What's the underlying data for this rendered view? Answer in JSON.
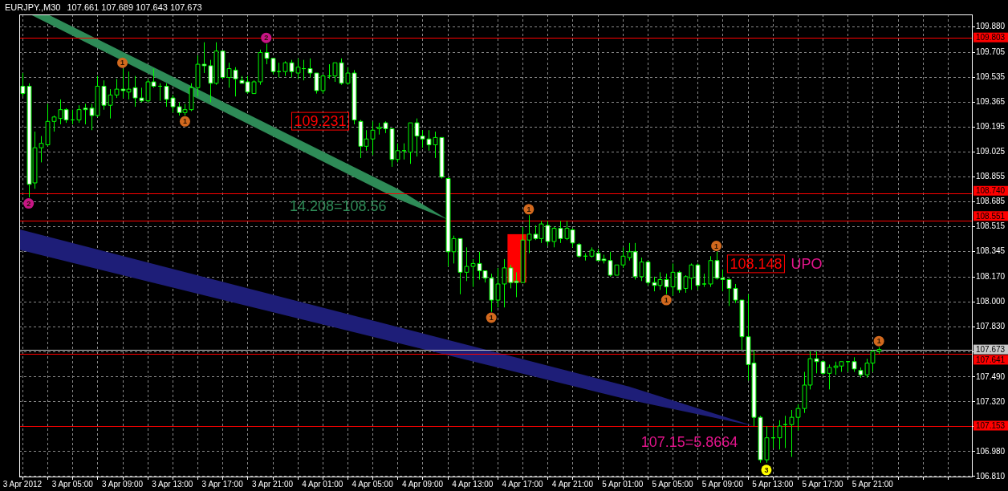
{
  "chart_data": {
    "type": "candlestick",
    "title": "EURJPY.,M30",
    "subtitle": "107.661 107.689 107.643 107.673",
    "color": "#00ff00",
    "x": [
      "2012-04-03T01:00",
      "2012-04-03T01:30",
      "2012-04-03T02:00",
      "2012-04-03T02:30",
      "2012-04-03T03:00",
      "2012-04-03T03:30",
      "2012-04-03T04:00",
      "2012-04-03T04:30",
      "2012-04-03T05:00",
      "2012-04-03T05:30",
      "2012-04-03T06:00",
      "2012-04-03T06:30",
      "2012-04-03T07:00",
      "2012-04-03T07:30",
      "2012-04-03T08:00",
      "2012-04-03T08:30",
      "2012-04-03T09:00",
      "2012-04-03T09:30",
      "2012-04-03T10:00",
      "2012-04-03T10:30",
      "2012-04-03T11:00",
      "2012-04-03T11:30",
      "2012-04-03T12:00",
      "2012-04-03T12:30",
      "2012-04-03T13:00",
      "2012-04-03T13:30",
      "2012-04-03T14:00",
      "2012-04-03T14:30",
      "2012-04-03T15:00",
      "2012-04-03T15:30",
      "2012-04-03T16:00",
      "2012-04-03T16:30",
      "2012-04-03T17:00",
      "2012-04-03T17:30",
      "2012-04-03T18:00",
      "2012-04-03T18:30",
      "2012-04-03T19:00",
      "2012-04-03T19:30",
      "2012-04-03T20:00",
      "2012-04-03T20:30",
      "2012-04-03T21:00",
      "2012-04-03T21:30",
      "2012-04-03T22:00",
      "2012-04-03T22:30",
      "2012-04-03T23:00",
      "2012-04-03T23:30",
      "2012-04-04T00:00",
      "2012-04-04T00:30",
      "2012-04-04T01:00",
      "2012-04-04T01:30",
      "2012-04-04T02:00",
      "2012-04-04T02:30",
      "2012-04-04T03:00",
      "2012-04-04T03:30",
      "2012-04-04T04:00",
      "2012-04-04T04:30",
      "2012-04-04T05:00",
      "2012-04-04T05:30",
      "2012-04-04T06:00",
      "2012-04-04T06:30",
      "2012-04-04T07:00",
      "2012-04-04T07:30",
      "2012-04-04T08:00",
      "2012-04-04T08:30",
      "2012-04-04T09:00",
      "2012-04-04T09:30",
      "2012-04-04T10:00",
      "2012-04-04T10:30",
      "2012-04-04T11:00",
      "2012-04-04T11:30",
      "2012-04-04T12:00",
      "2012-04-04T12:30",
      "2012-04-04T13:00",
      "2012-04-04T13:30",
      "2012-04-04T14:00",
      "2012-04-04T14:30",
      "2012-04-04T15:00",
      "2012-04-04T15:30",
      "2012-04-04T16:00",
      "2012-04-04T16:30",
      "2012-04-04T17:00",
      "2012-04-04T17:30",
      "2012-04-04T18:00",
      "2012-04-04T18:30",
      "2012-04-04T19:00",
      "2012-04-04T19:30",
      "2012-04-04T20:00",
      "2012-04-04T20:30",
      "2012-04-04T21:00",
      "2012-04-04T21:30",
      "2012-04-04T22:00",
      "2012-04-04T22:30",
      "2012-04-04T23:00",
      "2012-04-04T23:30",
      "2012-04-05T00:00",
      "2012-04-05T00:30",
      "2012-04-05T01:00",
      "2012-04-05T01:30",
      "2012-04-05T02:00",
      "2012-04-05T02:30",
      "2012-04-05T03:00",
      "2012-04-05T03:30",
      "2012-04-05T04:00",
      "2012-04-05T04:30",
      "2012-04-05T05:00",
      "2012-04-05T05:30",
      "2012-04-05T06:00",
      "2012-04-05T06:30",
      "2012-04-05T07:00",
      "2012-04-05T07:30",
      "2012-04-05T08:00",
      "2012-04-05T08:30",
      "2012-04-05T09:00",
      "2012-04-05T09:30",
      "2012-04-05T10:00",
      "2012-04-05T10:30",
      "2012-04-05T11:00",
      "2012-04-05T11:30",
      "2012-04-05T12:00",
      "2012-04-05T12:30",
      "2012-04-05T13:00",
      "2012-04-05T13:30",
      "2012-04-05T14:00",
      "2012-04-05T14:30",
      "2012-04-05T15:00",
      "2012-04-05T15:30",
      "2012-04-05T16:00",
      "2012-04-05T16:30",
      "2012-04-05T17:00",
      "2012-04-05T17:30",
      "2012-04-05T18:00",
      "2012-04-05T18:30",
      "2012-04-05T19:00",
      "2012-04-05T19:30",
      "2012-04-05T20:00",
      "2012-04-05T20:30",
      "2012-04-05T21:00",
      "2012-04-05T21:30"
    ],
    "ohlc": [
      [
        109.47,
        109.56,
        109.4,
        109.42
      ],
      [
        109.47,
        109.49,
        108.71,
        108.8
      ],
      [
        108.81,
        109.16,
        108.77,
        109.05
      ],
      [
        109.05,
        109.13,
        108.95,
        109.08
      ],
      [
        109.07,
        109.35,
        109.06,
        109.23
      ],
      [
        109.23,
        109.27,
        109.16,
        109.26
      ],
      [
        109.25,
        109.38,
        109.21,
        109.31
      ],
      [
        109.31,
        109.32,
        109.22,
        109.24
      ],
      [
        109.24,
        109.31,
        109.21,
        109.24
      ],
      [
        109.24,
        109.34,
        109.22,
        109.31
      ],
      [
        109.32,
        109.35,
        109.21,
        109.31
      ],
      [
        109.32,
        109.35,
        109.17,
        109.27
      ],
      [
        109.27,
        109.54,
        109.26,
        109.47
      ],
      [
        109.47,
        109.51,
        109.31,
        109.34
      ],
      [
        109.34,
        109.45,
        109.25,
        109.41
      ],
      [
        109.41,
        109.52,
        109.39,
        109.45
      ],
      [
        109.45,
        109.59,
        109.39,
        109.44
      ],
      [
        109.43,
        109.57,
        109.38,
        109.45
      ],
      [
        109.46,
        109.54,
        109.33,
        109.39
      ],
      [
        109.39,
        109.46,
        109.36,
        109.37
      ],
      [
        109.37,
        109.52,
        109.36,
        109.5
      ],
      [
        109.5,
        109.59,
        109.46,
        109.47
      ],
      [
        109.47,
        109.49,
        109.37,
        109.47
      ],
      [
        109.47,
        109.49,
        109.33,
        109.38
      ],
      [
        109.39,
        109.41,
        109.29,
        109.33
      ],
      [
        109.33,
        109.36,
        109.27,
        109.29
      ],
      [
        109.29,
        109.35,
        109.27,
        109.31
      ],
      [
        109.31,
        109.49,
        109.3,
        109.46
      ],
      [
        109.46,
        109.68,
        109.4,
        109.62
      ],
      [
        109.62,
        109.77,
        109.56,
        109.61
      ],
      [
        109.61,
        109.65,
        109.36,
        109.49
      ],
      [
        109.49,
        109.77,
        109.48,
        109.71
      ],
      [
        109.71,
        109.71,
        109.52,
        109.53
      ],
      [
        109.53,
        109.63,
        109.46,
        109.59
      ],
      [
        109.58,
        109.6,
        109.4,
        109.52
      ],
      [
        109.51,
        109.54,
        109.49,
        109.49
      ],
      [
        109.5,
        109.54,
        109.42,
        109.43
      ],
      [
        109.42,
        109.51,
        109.42,
        109.5
      ],
      [
        109.5,
        109.72,
        109.48,
        109.7
      ],
      [
        109.7,
        109.76,
        109.62,
        109.66
      ],
      [
        109.66,
        109.66,
        109.55,
        109.57
      ],
      [
        109.57,
        109.63,
        109.53,
        109.57
      ],
      [
        109.57,
        109.64,
        109.54,
        109.63
      ],
      [
        109.63,
        109.65,
        109.53,
        109.57
      ],
      [
        109.56,
        109.66,
        109.52,
        109.6
      ],
      [
        109.59,
        109.65,
        109.51,
        109.59
      ],
      [
        109.59,
        109.66,
        109.53,
        109.56
      ],
      [
        109.56,
        109.56,
        109.42,
        109.44
      ],
      [
        109.44,
        109.55,
        109.42,
        109.54
      ],
      [
        109.54,
        109.62,
        109.52,
        109.54
      ],
      [
        109.54,
        109.63,
        109.5,
        109.63
      ],
      [
        109.63,
        109.66,
        109.48,
        109.49
      ],
      [
        109.49,
        109.6,
        109.48,
        109.56
      ],
      [
        109.56,
        109.58,
        109.21,
        109.24
      ],
      [
        109.23,
        109.24,
        108.98,
        109.06
      ],
      [
        109.06,
        109.17,
        109.03,
        109.11
      ],
      [
        109.11,
        109.23,
        109.0,
        109.17
      ],
      [
        109.18,
        109.22,
        109.14,
        109.19
      ],
      [
        109.22,
        109.23,
        109.15,
        109.18
      ],
      [
        109.18,
        109.18,
        108.92,
        108.97
      ],
      [
        108.97,
        109.08,
        108.95,
        109.03
      ],
      [
        109.03,
        109.08,
        108.97,
        109.03
      ],
      [
        109.02,
        109.22,
        108.94,
        109.22
      ],
      [
        109.22,
        109.25,
        108.99,
        109.13
      ],
      [
        109.13,
        109.17,
        109.05,
        109.11
      ],
      [
        109.11,
        109.17,
        109.03,
        109.07
      ],
      [
        109.07,
        109.16,
        108.98,
        109.12
      ],
      [
        109.12,
        109.12,
        108.84,
        108.85
      ],
      [
        108.84,
        108.85,
        108.24,
        108.34
      ],
      [
        108.34,
        108.45,
        108.26,
        108.43
      ],
      [
        108.43,
        108.43,
        108.05,
        108.2
      ],
      [
        108.2,
        108.37,
        108.14,
        108.24
      ],
      [
        108.24,
        108.29,
        108.1,
        108.26
      ],
      [
        108.26,
        108.34,
        108.15,
        108.21
      ],
      [
        108.21,
        108.21,
        108.13,
        108.16
      ],
      [
        108.16,
        108.19,
        107.93,
        108.01
      ],
      [
        108.01,
        108.23,
        107.96,
        108.12
      ],
      [
        108.12,
        108.29,
        107.96,
        108.23
      ],
      [
        108.23,
        108.25,
        108.09,
        108.13
      ],
      [
        108.14,
        108.2,
        108.03,
        108.13
      ],
      [
        108.13,
        108.51,
        108.13,
        108.42
      ],
      [
        108.42,
        108.59,
        108.33,
        108.46
      ],
      [
        108.46,
        108.52,
        108.42,
        108.43
      ],
      [
        108.43,
        108.55,
        108.4,
        108.53
      ],
      [
        108.52,
        108.55,
        108.38,
        108.41
      ],
      [
        108.41,
        108.51,
        108.37,
        108.5
      ],
      [
        108.5,
        108.55,
        108.4,
        108.43
      ],
      [
        108.43,
        108.55,
        108.42,
        108.5
      ],
      [
        108.49,
        108.5,
        108.37,
        108.4
      ],
      [
        108.39,
        108.4,
        108.3,
        108.31
      ],
      [
        108.31,
        108.33,
        108.28,
        108.31
      ],
      [
        108.31,
        108.37,
        108.3,
        108.35
      ],
      [
        108.33,
        108.36,
        108.28,
        108.28
      ],
      [
        108.29,
        108.32,
        108.26,
        108.28
      ],
      [
        108.28,
        108.34,
        108.17,
        108.18
      ],
      [
        108.18,
        108.25,
        108.18,
        108.25
      ],
      [
        108.25,
        108.37,
        108.23,
        108.31
      ],
      [
        108.3,
        108.4,
        108.28,
        108.34
      ],
      [
        108.34,
        108.4,
        108.15,
        108.17
      ],
      [
        108.17,
        108.3,
        108.14,
        108.27
      ],
      [
        108.27,
        108.28,
        108.11,
        108.13
      ],
      [
        108.13,
        108.17,
        108.07,
        108.11
      ],
      [
        108.11,
        108.2,
        108.08,
        108.15
      ],
      [
        108.15,
        108.19,
        108.05,
        108.1
      ],
      [
        108.1,
        108.26,
        108.04,
        108.2
      ],
      [
        108.2,
        108.21,
        108.06,
        108.08
      ],
      [
        108.09,
        108.18,
        108.06,
        108.17
      ],
      [
        108.16,
        108.26,
        108.08,
        108.25
      ],
      [
        108.25,
        108.26,
        108.08,
        108.11
      ],
      [
        108.12,
        108.19,
        108.1,
        108.12
      ],
      [
        108.12,
        108.31,
        108.1,
        108.28
      ],
      [
        108.28,
        108.34,
        108.15,
        108.16
      ],
      [
        108.16,
        108.22,
        108.07,
        108.15
      ],
      [
        108.15,
        108.16,
        107.97,
        108.09
      ],
      [
        108.09,
        108.12,
        107.99,
        108.01
      ],
      [
        108.01,
        108.01,
        107.67,
        107.76
      ],
      [
        107.76,
        108.05,
        107.46,
        107.57
      ],
      [
        107.58,
        107.67,
        107.15,
        107.21
      ],
      [
        107.21,
        107.22,
        106.9,
        106.92
      ],
      [
        106.92,
        107.15,
        106.9,
        107.07
      ],
      [
        107.07,
        107.15,
        107.0,
        107.07
      ],
      [
        107.07,
        107.19,
        106.99,
        107.15
      ],
      [
        107.16,
        107.22,
        107.0,
        107.16
      ],
      [
        107.16,
        107.26,
        106.94,
        107.21
      ],
      [
        107.21,
        107.3,
        107.12,
        107.27
      ],
      [
        107.27,
        107.52,
        107.24,
        107.43
      ],
      [
        107.43,
        107.66,
        107.4,
        107.61
      ],
      [
        107.61,
        107.66,
        107.51,
        107.59
      ],
      [
        107.59,
        107.6,
        107.5,
        107.51
      ],
      [
        107.51,
        107.57,
        107.4,
        107.55
      ],
      [
        107.55,
        107.59,
        107.5,
        107.56
      ],
      [
        107.56,
        107.59,
        107.52,
        107.59
      ],
      [
        107.59,
        107.59,
        107.52,
        107.59
      ],
      [
        107.59,
        107.62,
        107.52,
        107.54
      ],
      [
        107.53,
        107.55,
        107.48,
        107.5
      ],
      [
        107.5,
        107.61,
        107.48,
        107.58
      ],
      [
        107.58,
        107.67,
        107.52,
        107.66
      ],
      [
        107.661,
        107.689,
        107.643,
        107.673
      ]
    ],
    "series": [
      {
        "type": "scatter",
        "color": "#d2691e",
        "marker": "circle",
        "x": [
          "2012-04-03T09:00",
          "2012-04-03T14:00",
          "2012-04-04T14:30",
          "2012-04-04T17:30",
          "2012-04-05T04:30",
          "2012-04-05T08:30",
          "2012-04-05T21:30"
        ],
        "values": [
          109.63,
          109.23,
          107.89,
          108.63,
          108.01,
          108.38,
          107.73
        ]
      },
      {
        "type": "scatter",
        "color": "#c71585",
        "marker": "circle",
        "x": [
          "2012-04-03T01:30",
          "2012-04-03T20:30"
        ],
        "values": [
          108.67,
          109.8
        ]
      },
      {
        "type": "scatter",
        "color": "#ffff00",
        "marker": "circle",
        "x": [
          "2012-04-05T12:30"
        ],
        "values": [
          106.85
        ]
      }
    ],
    "xlim": [
      "2012-04-03T00:45",
      "2012-04-06T05:00"
    ],
    "ylim": [
      106.8,
      109.96
    ],
    "xticks": [
      {
        "value": "2012-04-03T01:00",
        "label": "3 Apr 2012"
      },
      {
        "value": "2012-04-03T03:00",
        "label": null
      },
      {
        "value": "2012-04-03T05:00",
        "label": "3 Apr 05:00"
      },
      {
        "value": "2012-04-03T07:00",
        "label": null
      },
      {
        "value": "2012-04-03T09:00",
        "label": "3 Apr 09:00"
      },
      {
        "value": "2012-04-03T11:00",
        "label": null
      },
      {
        "value": "2012-04-03T13:00",
        "label": "3 Apr 13:00"
      },
      {
        "value": "2012-04-03T15:00",
        "label": null
      },
      {
        "value": "2012-04-03T17:00",
        "label": "3 Apr 17:00"
      },
      {
        "value": "2012-04-03T19:00",
        "label": null
      },
      {
        "value": "2012-04-03T21:00",
        "label": "3 Apr 21:00"
      },
      {
        "value": "2012-04-03T23:00",
        "label": null
      },
      {
        "value": "2012-04-04T01:00",
        "label": "4 Apr 01:00"
      },
      {
        "value": "2012-04-04T03:00",
        "label": null
      },
      {
        "value": "2012-04-04T05:00",
        "label": "4 Apr 05:00"
      },
      {
        "value": "2012-04-04T07:00",
        "label": null
      },
      {
        "value": "2012-04-04T09:00",
        "label": "4 Apr 09:00"
      },
      {
        "value": "2012-04-04T11:00",
        "label": null
      },
      {
        "value": "2012-04-04T13:00",
        "label": "4 Apr 13:00"
      },
      {
        "value": "2012-04-04T15:00",
        "label": null
      },
      {
        "value": "2012-04-04T17:00",
        "label": "4 Apr 17:00"
      },
      {
        "value": "2012-04-04T19:00",
        "label": null
      },
      {
        "value": "2012-04-04T21:00",
        "label": "4 Apr 21:00"
      },
      {
        "value": "2012-04-04T23:00",
        "label": null
      },
      {
        "value": "2012-04-05T01:00",
        "label": "5 Apr 01:00"
      },
      {
        "value": "2012-04-05T03:00",
        "label": null
      },
      {
        "value": "2012-04-05T05:00",
        "label": "5 Apr 05:00"
      },
      {
        "value": "2012-04-05T07:00",
        "label": null
      },
      {
        "value": "2012-04-05T09:00",
        "label": "5 Apr 09:00"
      },
      {
        "value": "2012-04-05T11:00",
        "label": null
      },
      {
        "value": "2012-04-05T13:00",
        "label": "5 Apr 13:00"
      },
      {
        "value": "2012-04-05T15:00",
        "label": null
      },
      {
        "value": "2012-04-05T17:00",
        "label": "5 Apr 17:00"
      },
      {
        "value": "2012-04-05T19:00",
        "label": null
      },
      {
        "value": "2012-04-05T21:00",
        "label": "5 Apr 21:00"
      },
      {
        "value": "2012-04-05T23:00",
        "label": null
      },
      {
        "value": "2012-04-06T01:00",
        "label": null
      },
      {
        "value": "2012-04-06T03:00",
        "label": null
      }
    ],
    "yticks": [
      {
        "value": 106.81,
        "label": "106.810"
      },
      {
        "value": 106.98,
        "label": "106.980"
      },
      {
        "value": 107.15,
        "label": null
      },
      {
        "value": 107.32,
        "label": "107.320"
      },
      {
        "value": 107.49,
        "label": "107.490"
      },
      {
        "value": 107.66,
        "label": null
      },
      {
        "value": 107.83,
        "label": "107.830"
      },
      {
        "value": 108,
        "label": "108.000"
      },
      {
        "value": 108.17,
        "label": "108.170"
      },
      {
        "value": 108.345,
        "label": "108.345"
      },
      {
        "value": 108.515,
        "label": "108.515"
      },
      {
        "value": 108.685,
        "label": "108.685"
      },
      {
        "value": 108.855,
        "label": "108.855"
      },
      {
        "value": 109.025,
        "label": "109.025"
      },
      {
        "value": 109.195,
        "label": "109.195"
      },
      {
        "value": 109.365,
        "label": "109.365"
      },
      {
        "value": 109.535,
        "label": "109.535"
      },
      {
        "value": 109.705,
        "label": "109.705"
      },
      {
        "value": 109.88,
        "label": "109.880"
      }
    ],
    "grid": true,
    "ref_lines": [
      {
        "axis": "y",
        "value": 109.803,
        "label": "109.803",
        "color": "#ff0000"
      },
      {
        "axis": "y",
        "value": 108.74,
        "label": "108.740",
        "color": "#ff0000"
      },
      {
        "axis": "y",
        "value": 108.551,
        "label": "108.551",
        "color": "#ff0000"
      },
      {
        "axis": "y",
        "value": 107.673,
        "label": "107.673",
        "color": "#c8c8c8"
      },
      {
        "axis": "y",
        "value": 107.641,
        "label": "107.641",
        "color": "#ff0000"
      },
      {
        "axis": "y",
        "value": 107.153,
        "label": "107.153",
        "color": "#ff0000"
      }
    ],
    "annotations": [
      {
        "text": "109.231",
        "x": "2012-04-04T04:00",
        "y": 109.231
      },
      {
        "text": "108.148",
        "x": "2012-04-05T09:00",
        "y": 108.148
      },
      "UPO",
      "14.208=108.56",
      {
        "text": "107.15=5.8664",
        "x": "2012-04-05T11:30",
        "y": 107.15
      },
      {
        "text": "2",
        "x": "2012-04-03T01:30",
        "y": 108.67
      },
      {
        "text": "1",
        "x": "2012-04-03T09:00",
        "y": 109.63
      },
      {
        "text": "1",
        "x": "2012-04-03T14:00",
        "y": 109.23
      },
      {
        "text": "2",
        "x": "2012-04-03T20:30",
        "y": 109.8
      },
      {
        "text": "1",
        "x": "2012-04-04T14:30",
        "y": 107.89
      },
      {
        "text": "1",
        "x": "2012-04-04T17:30",
        "y": 108.63
      },
      {
        "text": "1",
        "x": "2012-04-05T04:30",
        "y": 108.01
      },
      {
        "text": "1",
        "x": "2012-04-05T08:30",
        "y": 108.38
      },
      {
        "text": "3",
        "x": "2012-04-05T12:30",
        "y": 106.85
      },
      {
        "text": "1",
        "x": "2012-04-05T21:30",
        "y": 107.73
      }
    ]
  }
}
